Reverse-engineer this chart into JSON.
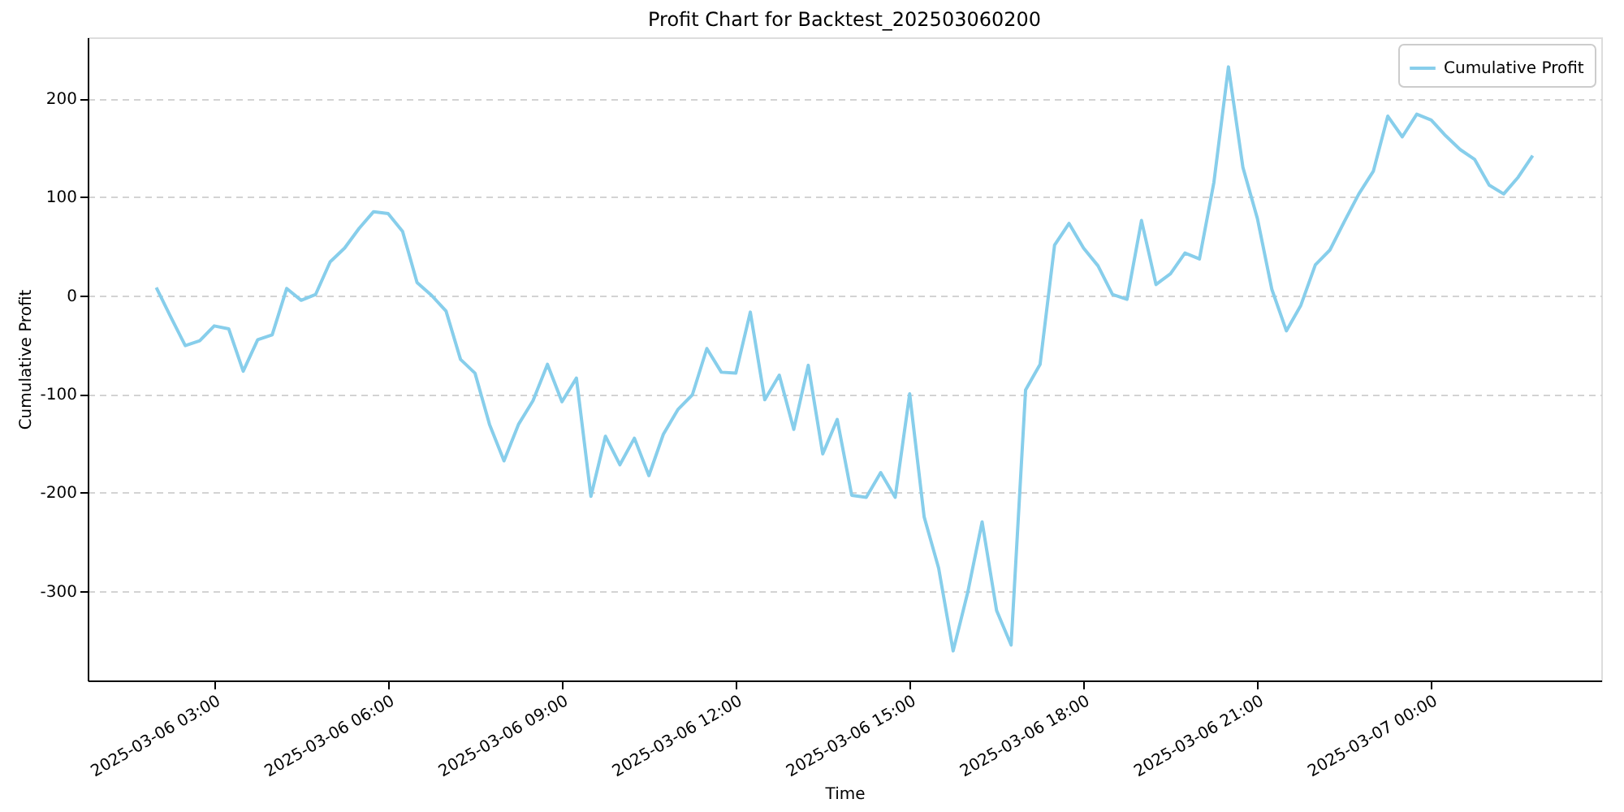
{
  "chart_data": {
    "type": "line",
    "title": "Profit Chart for Backtest_202503060200",
    "xlabel": "Time",
    "ylabel": "Cumulative Profit",
    "x": [
      "2025-03-06T02:00",
      "2025-03-06T02:15",
      "2025-03-06T02:30",
      "2025-03-06T02:45",
      "2025-03-06T03:00",
      "2025-03-06T03:15",
      "2025-03-06T03:30",
      "2025-03-06T03:45",
      "2025-03-06T04:00",
      "2025-03-06T04:15",
      "2025-03-06T04:30",
      "2025-03-06T04:45",
      "2025-03-06T05:00",
      "2025-03-06T05:15",
      "2025-03-06T05:30",
      "2025-03-06T05:45",
      "2025-03-06T06:00",
      "2025-03-06T06:15",
      "2025-03-06T06:30",
      "2025-03-06T06:45",
      "2025-03-06T07:00",
      "2025-03-06T07:15",
      "2025-03-06T07:30",
      "2025-03-06T07:45",
      "2025-03-06T08:00",
      "2025-03-06T08:15",
      "2025-03-06T08:30",
      "2025-03-06T08:45",
      "2025-03-06T09:00",
      "2025-03-06T09:15",
      "2025-03-06T09:30",
      "2025-03-06T09:45",
      "2025-03-06T10:00",
      "2025-03-06T10:15",
      "2025-03-06T10:30",
      "2025-03-06T10:45",
      "2025-03-06T11:00",
      "2025-03-06T11:15",
      "2025-03-06T11:30",
      "2025-03-06T11:45",
      "2025-03-06T12:00",
      "2025-03-06T12:15",
      "2025-03-06T12:30",
      "2025-03-06T12:45",
      "2025-03-06T13:00",
      "2025-03-06T13:15",
      "2025-03-06T13:30",
      "2025-03-06T13:45",
      "2025-03-06T14:00",
      "2025-03-06T14:15",
      "2025-03-06T14:30",
      "2025-03-06T14:45",
      "2025-03-06T15:00",
      "2025-03-06T15:15",
      "2025-03-06T15:30",
      "2025-03-06T15:45",
      "2025-03-06T16:00",
      "2025-03-06T16:15",
      "2025-03-06T16:30",
      "2025-03-06T16:45",
      "2025-03-06T17:00",
      "2025-03-06T17:15",
      "2025-03-06T17:30",
      "2025-03-06T17:45",
      "2025-03-06T18:00",
      "2025-03-06T18:15",
      "2025-03-06T18:30",
      "2025-03-06T18:45",
      "2025-03-06T19:00",
      "2025-03-06T19:15",
      "2025-03-06T19:30",
      "2025-03-06T19:45",
      "2025-03-06T20:00",
      "2025-03-06T20:15",
      "2025-03-06T20:30",
      "2025-03-06T20:45",
      "2025-03-06T21:00",
      "2025-03-06T21:15",
      "2025-03-06T21:30",
      "2025-03-06T21:45",
      "2025-03-06T22:00",
      "2025-03-06T22:15",
      "2025-03-06T22:30",
      "2025-03-06T22:45",
      "2025-03-06T23:00",
      "2025-03-06T23:15",
      "2025-03-06T23:30",
      "2025-03-06T23:45",
      "2025-03-07T00:00",
      "2025-03-07T00:15",
      "2025-03-07T00:30",
      "2025-03-07T00:45",
      "2025-03-07T01:00",
      "2025-03-07T01:15",
      "2025-03-07T01:30",
      "2025-03-07T01:45"
    ],
    "series": [
      {
        "name": "Cumulative Profit",
        "color": "#87ceeb",
        "values": [
          8,
          -22,
          -51,
          -46,
          -31,
          -34,
          -77,
          -45,
          -40,
          7,
          -5,
          1,
          34,
          48,
          68,
          85,
          83,
          65,
          13,
          0,
          -16,
          -65,
          -79,
          -131,
          -168,
          -131,
          -107,
          -70,
          -108,
          -84,
          -204,
          -143,
          -172,
          -145,
          -183,
          -141,
          -116,
          -101,
          -54,
          -78,
          -79,
          -17,
          -106,
          -81,
          -136,
          -71,
          -161,
          -126,
          -203,
          -205,
          -180,
          -205,
          -100,
          -225,
          -277,
          -361,
          -302,
          -230,
          -320,
          -355,
          -96,
          -70,
          51,
          73,
          48,
          30,
          1,
          -4,
          76,
          11,
          22,
          43,
          37,
          115,
          232,
          130,
          78,
          6,
          -36,
          -10,
          31,
          46,
          75,
          103,
          126,
          182,
          161,
          184,
          178,
          162,
          148,
          138,
          112,
          103,
          120,
          142
        ]
      }
    ],
    "xlim": [
      "2025-03-06T00:49",
      "2025-03-07T02:56"
    ],
    "xticks": [
      {
        "value": "2025-03-06T03:00",
        "label": "2025-03-06 03:00"
      },
      {
        "value": "2025-03-06T06:00",
        "label": "2025-03-06 06:00"
      },
      {
        "value": "2025-03-06T09:00",
        "label": "2025-03-06 09:00"
      },
      {
        "value": "2025-03-06T12:00",
        "label": "2025-03-06 12:00"
      },
      {
        "value": "2025-03-06T15:00",
        "label": "2025-03-06 15:00"
      },
      {
        "value": "2025-03-06T18:00",
        "label": "2025-03-06 18:00"
      },
      {
        "value": "2025-03-06T21:00",
        "label": "2025-03-06 21:00"
      },
      {
        "value": "2025-03-07T00:00",
        "label": "2025-03-07 00:00"
      }
    ],
    "ylim": [
      -391,
      262
    ],
    "yticks": [
      -300,
      -200,
      -100,
      0,
      100,
      200
    ],
    "grid": "y",
    "legend": "top right",
    "marker": "none",
    "line_style": "solid"
  }
}
